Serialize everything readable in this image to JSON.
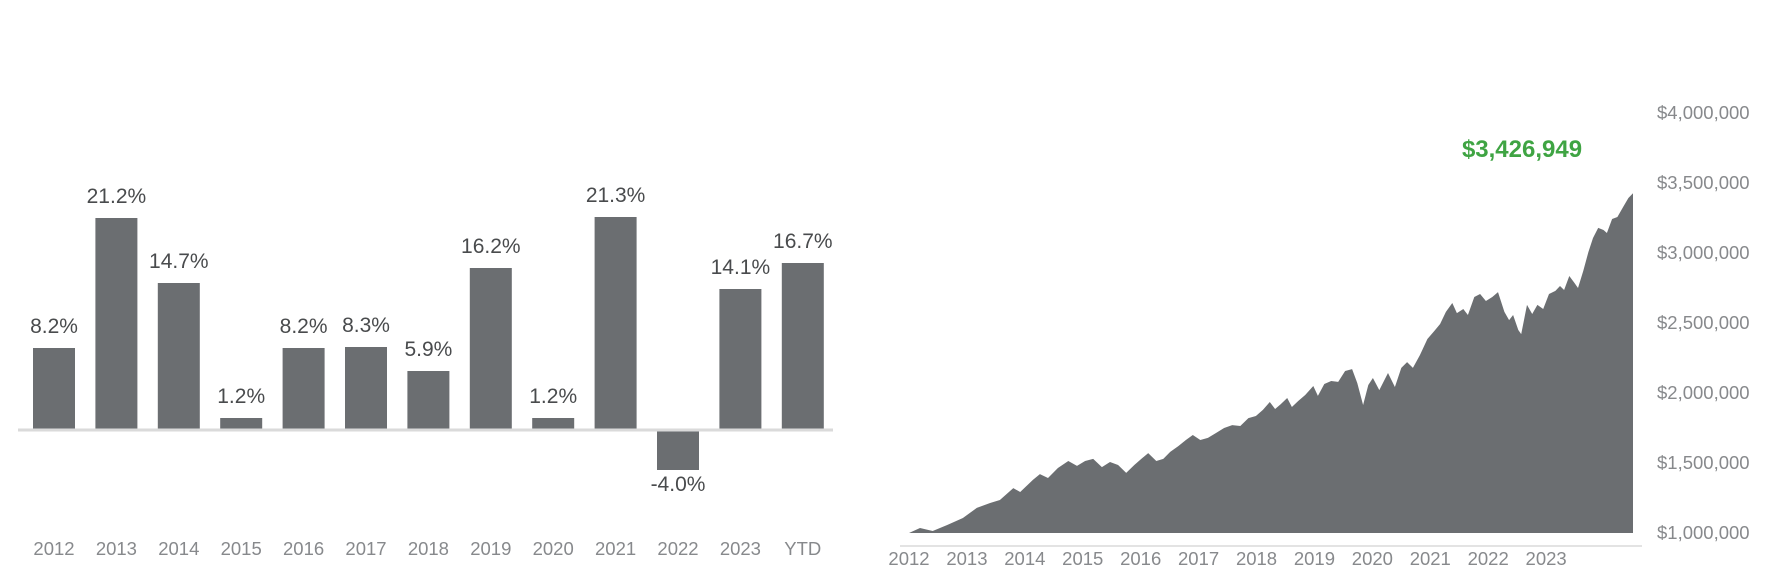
{
  "page": {
    "background": "#ffffff"
  },
  "chart_data": [
    {
      "type": "bar",
      "name": "annual-returns",
      "categories": [
        "2012",
        "2013",
        "2014",
        "2015",
        "2016",
        "2017",
        "2018",
        "2019",
        "2020",
        "2021",
        "2022",
        "2023",
        "YTD"
      ],
      "values": [
        8.2,
        21.2,
        14.7,
        1.2,
        8.2,
        8.3,
        5.9,
        16.2,
        1.2,
        21.3,
        -4.0,
        14.1,
        16.7
      ],
      "value_labels": [
        "8.2%",
        "21.2%",
        "14.7%",
        "1.2%",
        "8.2%",
        "8.3%",
        "5.9%",
        "16.2%",
        "1.2%",
        "21.3%",
        "-4.0%",
        "14.1%",
        "16.7%"
      ],
      "unit": "%",
      "bar_color": "#6B6E71",
      "value_label_color": "#494B4D",
      "axis_label_color": "#87898C",
      "axis_line_color": "#DADADA",
      "grid": false,
      "legend": "none"
    },
    {
      "type": "area",
      "name": "portfolio-balance",
      "annotation": {
        "text": "$3,426,949",
        "value": 3426949,
        "color": "#3FA443"
      },
      "x_ticks": [
        "2012",
        "2013",
        "2014",
        "2015",
        "2016",
        "2017",
        "2018",
        "2019",
        "2020",
        "2021",
        "2022",
        "2023"
      ],
      "y_ticks": [
        {
          "label": "$4,000,000",
          "value": 4000000
        },
        {
          "label": "$3,500,000",
          "value": 3500000
        },
        {
          "label": "$3,000,000",
          "value": 3000000
        },
        {
          "label": "$2,500,000",
          "value": 2500000
        },
        {
          "label": "$2,000,000",
          "value": 2000000
        },
        {
          "label": "$1,500,000",
          "value": 1500000
        },
        {
          "label": "$1,000,000",
          "value": 1000000
        }
      ],
      "ylim": [
        1000000,
        4000000
      ],
      "xlim_years": [
        2012.0,
        2024.5
      ],
      "fill_color": "#6B6E71",
      "axis_label_color": "#87898C",
      "axis_line_color": "#E3E3E3",
      "grid": false,
      "legend": "none",
      "series": {
        "x": [
          2012.0,
          2012.19,
          2012.41,
          2012.66,
          2012.93,
          2013.17,
          2013.4,
          2013.57,
          2013.8,
          2013.92,
          2014.14,
          2014.26,
          2014.4,
          2014.57,
          2014.75,
          2014.9,
          2015.04,
          2015.18,
          2015.33,
          2015.47,
          2015.61,
          2015.75,
          2015.89,
          2016.01,
          2016.13,
          2016.27,
          2016.39,
          2016.51,
          2016.65,
          2016.78,
          2016.9,
          2017.03,
          2017.16,
          2017.3,
          2017.44,
          2017.58,
          2017.72,
          2017.86,
          2017.99,
          2018.11,
          2018.23,
          2018.32,
          2018.42,
          2018.53,
          2018.61,
          2018.72,
          2018.84,
          2018.98,
          2019.06,
          2019.17,
          2019.29,
          2019.41,
          2019.53,
          2019.65,
          2019.74,
          2019.84,
          2019.93,
          2020.01,
          2020.12,
          2020.27,
          2020.39,
          2020.5,
          2020.6,
          2020.7,
          2020.82,
          2020.95,
          2021.07,
          2021.17,
          2021.27,
          2021.38,
          2021.46,
          2021.57,
          2021.65,
          2021.76,
          2021.86,
          2021.96,
          2022.07,
          2022.17,
          2022.28,
          2022.36,
          2022.43,
          2022.52,
          2022.57,
          2022.67,
          2022.76,
          2022.85,
          2022.95,
          2023.05,
          2023.16,
          2023.24,
          2023.31,
          2023.4,
          2023.49,
          2023.55,
          2023.64,
          2023.73,
          2023.81,
          2023.9,
          2023.99,
          2024.05,
          2024.14,
          2024.23,
          2024.33,
          2024.42,
          2024.5
        ],
        "values": [
          1000000,
          1036000,
          1014000,
          1057000,
          1107000,
          1179000,
          1214000,
          1236000,
          1321000,
          1293000,
          1379000,
          1421000,
          1393000,
          1464000,
          1514000,
          1479000,
          1514000,
          1529000,
          1471000,
          1507000,
          1486000,
          1429000,
          1486000,
          1529000,
          1571000,
          1514000,
          1529000,
          1579000,
          1621000,
          1664000,
          1700000,
          1664000,
          1679000,
          1714000,
          1750000,
          1771000,
          1764000,
          1821000,
          1836000,
          1879000,
          1936000,
          1886000,
          1921000,
          1964000,
          1900000,
          1943000,
          1986000,
          2050000,
          1979000,
          2064000,
          2086000,
          2079000,
          2157000,
          2171000,
          2071000,
          1914000,
          2057000,
          2107000,
          2021000,
          2143000,
          2043000,
          2179000,
          2221000,
          2179000,
          2271000,
          2386000,
          2443000,
          2493000,
          2579000,
          2643000,
          2571000,
          2600000,
          2557000,
          2686000,
          2707000,
          2657000,
          2686000,
          2721000,
          2579000,
          2521000,
          2557000,
          2450000,
          2421000,
          2629000,
          2564000,
          2629000,
          2600000,
          2707000,
          2729000,
          2764000,
          2736000,
          2836000,
          2786000,
          2750000,
          2871000,
          3007000,
          3107000,
          3179000,
          3164000,
          3143000,
          3243000,
          3257000,
          3329000,
          3393000,
          3426949
        ]
      }
    }
  ]
}
